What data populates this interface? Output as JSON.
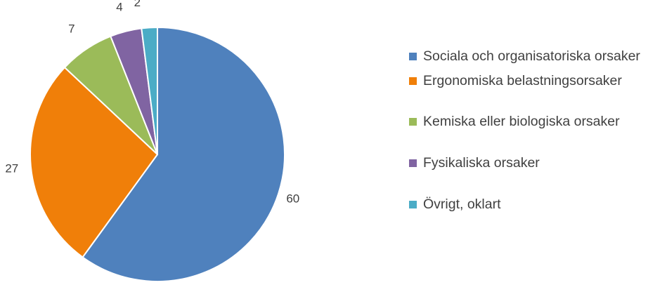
{
  "chart_data": {
    "type": "pie",
    "title": "",
    "categories": [
      "Sociala och organisatoriska orsaker",
      "Ergonomiska belastningsorsaker",
      "Kemiska eller biologiska orsaker",
      "Fysikaliska orsaker",
      "Övrigt, oklart"
    ],
    "values": [
      60,
      27,
      7,
      4,
      2
    ],
    "data_labels": [
      "60",
      "27",
      "7",
      "4",
      "2"
    ],
    "colors": [
      "#4F81BD",
      "#F07F09",
      "#9BBB59",
      "#8064A2",
      "#4BACC6"
    ],
    "legend": "right",
    "start_angle_deg": 0,
    "direction": "clockwise"
  }
}
